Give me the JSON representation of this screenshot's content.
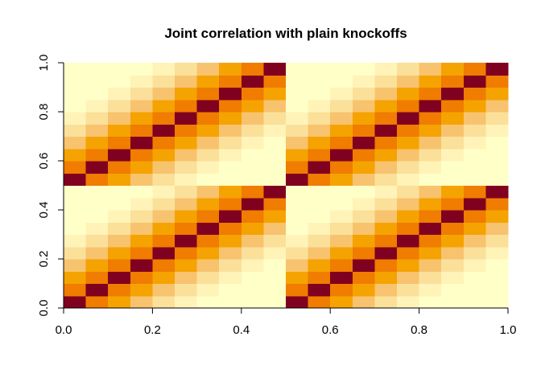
{
  "chart_data": {
    "type": "heatmap",
    "title": "Joint correlation with plain knockoffs",
    "xlabel": "",
    "ylabel": "",
    "xlim": [
      0,
      1
    ],
    "ylim": [
      0,
      1
    ],
    "x_ticks": [
      0.0,
      0.2,
      0.4,
      0.6,
      0.8,
      1.0
    ],
    "x_tick_labels": [
      "0.0",
      "0.2",
      "0.4",
      "0.6",
      "0.8",
      "1.0"
    ],
    "y_ticks": [
      0.0,
      0.2,
      0.4,
      0.6,
      0.8,
      1.0
    ],
    "y_tick_labels": [
      "0.0",
      "0.2",
      "0.4",
      "0.6",
      "0.8",
      "1.0"
    ],
    "grid": false,
    "colormap": "heat (dark red = high, light yellow = low)",
    "palette": [
      "#ffffc8",
      "#fff3b8",
      "#fbe09a",
      "#f8c36e",
      "#f5a300",
      "#f07c00",
      "#800020"
    ],
    "n_rows": 20,
    "n_cols": 20,
    "block_size": 10,
    "block_structure": "2x2 tiling of the same 10x10 correlation block (variables and plain knockoffs)",
    "block_values": [
      [
        1.0,
        0.8,
        0.6,
        0.45,
        0.3,
        0.2,
        0.1,
        0.05,
        0.02,
        0.0
      ],
      [
        0.8,
        1.0,
        0.8,
        0.6,
        0.45,
        0.3,
        0.2,
        0.1,
        0.05,
        0.02
      ],
      [
        0.6,
        0.8,
        1.0,
        0.8,
        0.6,
        0.45,
        0.3,
        0.2,
        0.1,
        0.05
      ],
      [
        0.45,
        0.6,
        0.8,
        1.0,
        0.8,
        0.6,
        0.45,
        0.3,
        0.2,
        0.1
      ],
      [
        0.3,
        0.45,
        0.6,
        0.8,
        1.0,
        0.8,
        0.6,
        0.45,
        0.3,
        0.2
      ],
      [
        0.2,
        0.3,
        0.45,
        0.6,
        0.8,
        1.0,
        0.8,
        0.6,
        0.45,
        0.3
      ],
      [
        0.1,
        0.2,
        0.3,
        0.45,
        0.6,
        0.8,
        1.0,
        0.8,
        0.6,
        0.45
      ],
      [
        0.05,
        0.1,
        0.2,
        0.3,
        0.45,
        0.6,
        0.8,
        1.0,
        0.8,
        0.6
      ],
      [
        0.02,
        0.05,
        0.1,
        0.2,
        0.3,
        0.45,
        0.6,
        0.8,
        1.0,
        0.8
      ],
      [
        0.0,
        0.02,
        0.05,
        0.1,
        0.2,
        0.3,
        0.45,
        0.6,
        0.8,
        1.0
      ]
    ]
  }
}
